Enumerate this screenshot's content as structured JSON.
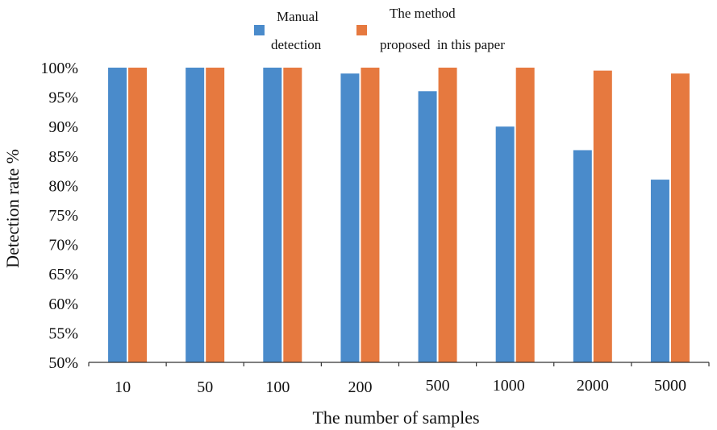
{
  "chart_data": {
    "type": "bar",
    "categories": [
      "10",
      "50",
      "100",
      "200",
      "500",
      "1000",
      "2000",
      "5000"
    ],
    "series": [
      {
        "name": "Manual detection",
        "color": "#4a8bcb",
        "values": [
          100,
          100,
          100,
          99,
          96,
          90,
          86,
          81
        ]
      },
      {
        "name": "The method proposed  in this paper",
        "color": "#e6793f",
        "values": [
          100,
          100,
          100,
          100,
          100,
          100,
          99.5,
          99
        ]
      }
    ],
    "legend": [
      {
        "lines": [
          "Manual",
          "detection"
        ]
      },
      {
        "lines": [
          "The method",
          "proposed  in this paper"
        ]
      }
    ],
    "legend_position": "top",
    "xlabel": "The number of samples",
    "ylabel": "Detection rate %",
    "ylim": [
      50,
      100
    ],
    "yticks": [
      "50%",
      "55%",
      "60%",
      "65%",
      "70%",
      "75%",
      "80%",
      "85%",
      "90%",
      "95%",
      "100%"
    ],
    "grid": false
  }
}
